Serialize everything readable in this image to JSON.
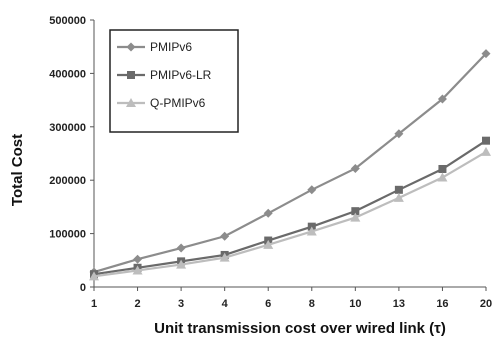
{
  "chart_data": {
    "type": "line",
    "categories": [
      "1",
      "2",
      "3",
      "4",
      "6",
      "8",
      "10",
      "13",
      "16",
      "20"
    ],
    "series": [
      {
        "name": "PMIPv6",
        "color": "#8c8c8c",
        "marker": "diamond",
        "values": [
          28000,
          52000,
          73000,
          95000,
          138000,
          182000,
          222000,
          287000,
          352000,
          437000
        ]
      },
      {
        "name": "PMIPv6-LR",
        "color": "#6a6a6a",
        "marker": "square",
        "values": [
          24000,
          36000,
          48000,
          60000,
          87000,
          113000,
          142000,
          182000,
          221000,
          274000
        ]
      },
      {
        "name": "Q-PMIPv6",
        "color": "#bdbdbd",
        "marker": "triangle",
        "values": [
          20000,
          31000,
          42000,
          55000,
          79000,
          104000,
          130000,
          167000,
          205000,
          253000
        ]
      }
    ],
    "y_ticks": [
      "0",
      "100000",
      "200000",
      "300000",
      "400000",
      "500000"
    ],
    "ylim": [
      0,
      500000
    ],
    "xlabel": "Unit transmission  cost over wired link (τ)",
    "ylabel": "Total  Cost",
    "legend_position": "top-left",
    "grid": false
  }
}
